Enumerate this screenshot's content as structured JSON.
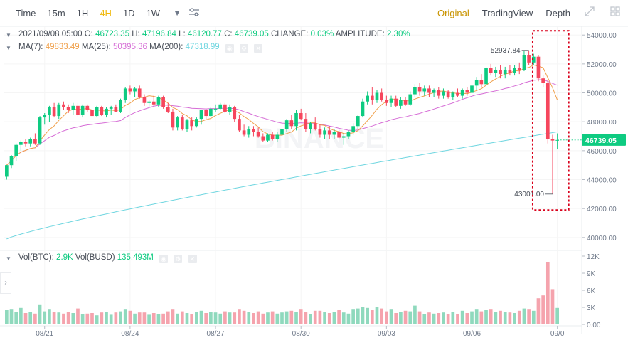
{
  "toolbar": {
    "timeframes": [
      {
        "label": "Time",
        "active": false
      },
      {
        "label": "15m",
        "active": false
      },
      {
        "label": "1H",
        "active": false
      },
      {
        "label": "4H",
        "active": true
      },
      {
        "label": "1D",
        "active": false
      },
      {
        "label": "1W",
        "active": false
      }
    ],
    "dropdown_icon": "caret-down-icon",
    "settings_icon": "sliders-icon",
    "views": [
      {
        "label": "Original",
        "active": true
      },
      {
        "label": "TradingView",
        "active": false
      },
      {
        "label": "Depth",
        "active": false
      }
    ],
    "expand_icon": "expand-icon",
    "grid_icon": "grid-icon"
  },
  "ohlc_legend": {
    "date": "2021/09/08 05:00",
    "open_label": "O:",
    "open": "46723.35",
    "high_label": "H:",
    "high": "47196.84",
    "low_label": "L:",
    "low": "46120.77",
    "close_label": "C:",
    "close": "46739.05",
    "change_label": "CHANGE:",
    "change": "0.03%",
    "amplitude_label": "AMPLITUDE:",
    "amplitude": "2.30%"
  },
  "ma_legend": {
    "ma7_label": "MA(7):",
    "ma7": "49833.49",
    "ma25_label": "MA(25):",
    "ma25": "50395.36",
    "ma200_label": "MA(200):",
    "ma200": "47318.99"
  },
  "volume_legend": {
    "btc_label": "Vol(BTC):",
    "btc": "2.9K",
    "busd_label": "Vol(BUSD)",
    "busd": "135.493M"
  },
  "watermark": "BINANCE",
  "annotations": {
    "high_marker": "52937.84",
    "low_marker": "43001.00",
    "current_price": "46739.05"
  },
  "colors": {
    "up": "#0ecb81",
    "down": "#f6465d",
    "up_volume": "#8fd9bd",
    "down_volume": "#f5a3ad",
    "ma7": "#f0a04b",
    "ma25": "#d66dd6",
    "ma200": "#6fd6e0",
    "highlight_box": "#d9001b",
    "accent": "#f0b90b"
  },
  "chart_data": {
    "type": "candlestick",
    "price_axis": {
      "ticks": [
        "54000.00",
        "52000.00",
        "50000.00",
        "48000.00",
        "46000.00",
        "44000.00",
        "42000.00",
        "40000.00"
      ],
      "range": [
        39500,
        54600
      ]
    },
    "volume_axis": {
      "ticks": [
        "12K",
        "9K",
        "6K",
        "3K",
        "0.00"
      ],
      "range": [
        0,
        12000
      ]
    },
    "x_ticks": [
      "08/21",
      "08/24",
      "08/27",
      "08/30",
      "09/03",
      "09/06",
      "09/0"
    ],
    "candles": [
      [
        44200,
        45000,
        44000,
        45000,
        2500
      ],
      [
        45000,
        45700,
        44800,
        45600,
        2600
      ],
      [
        45600,
        46500,
        45300,
        46400,
        2200
      ],
      [
        46400,
        46700,
        46000,
        46600,
        2900
      ],
      [
        46600,
        46800,
        46300,
        46500,
        2000
      ],
      [
        46500,
        46900,
        46300,
        46800,
        2200
      ],
      [
        46800,
        47200,
        46400,
        46500,
        1900
      ],
      [
        46500,
        48400,
        46400,
        48300,
        3400
      ],
      [
        48300,
        48600,
        47800,
        48500,
        2300
      ],
      [
        48500,
        49100,
        48000,
        49000,
        2600
      ],
      [
        49000,
        49300,
        48300,
        48400,
        2200
      ],
      [
        48400,
        49300,
        48200,
        49200,
        2100
      ],
      [
        49200,
        49400,
        48800,
        49000,
        1900
      ],
      [
        49000,
        49200,
        48600,
        48800,
        2200
      ],
      [
        48800,
        49300,
        48500,
        49100,
        2000
      ],
      [
        49100,
        49300,
        48300,
        48500,
        2800
      ],
      [
        48500,
        49200,
        48300,
        49100,
        1800
      ],
      [
        49100,
        49200,
        48700,
        48800,
        1900
      ],
      [
        48800,
        49100,
        48300,
        48400,
        2000
      ],
      [
        48400,
        49100,
        48300,
        49000,
        1600
      ],
      [
        49000,
        49100,
        48400,
        48500,
        2100
      ],
      [
        48500,
        49000,
        48300,
        48900,
        2200
      ],
      [
        48900,
        49100,
        48500,
        49000,
        1700
      ],
      [
        49000,
        49200,
        48700,
        48700,
        2100
      ],
      [
        48700,
        49600,
        48600,
        49500,
        2300
      ],
      [
        49500,
        50400,
        49300,
        50300,
        2600
      ],
      [
        50300,
        50500,
        49900,
        50100,
        2400
      ],
      [
        50100,
        50400,
        49700,
        50300,
        1900
      ],
      [
        50300,
        50500,
        49600,
        49700,
        2100
      ],
      [
        49700,
        49900,
        49100,
        49300,
        2100
      ],
      [
        49300,
        49500,
        49000,
        49400,
        1700
      ],
      [
        49400,
        49800,
        49100,
        49200,
        2000
      ],
      [
        49200,
        49800,
        49000,
        49700,
        1800
      ],
      [
        49700,
        49800,
        48900,
        49000,
        1900
      ],
      [
        49000,
        49300,
        48600,
        48700,
        2300
      ],
      [
        48700,
        48900,
        47400,
        47600,
        2600
      ],
      [
        47600,
        48400,
        47400,
        48300,
        1900
      ],
      [
        48300,
        48500,
        47400,
        47500,
        2300
      ],
      [
        47500,
        48200,
        47300,
        48100,
        2000
      ],
      [
        48100,
        48300,
        47400,
        47700,
        1800
      ],
      [
        47700,
        48300,
        47600,
        48200,
        2200
      ],
      [
        48200,
        48800,
        47800,
        48800,
        2400
      ],
      [
        48800,
        48900,
        48200,
        48400,
        2000
      ],
      [
        48400,
        49000,
        48300,
        48900,
        2200
      ],
      [
        48900,
        49200,
        48700,
        48900,
        2100
      ],
      [
        48900,
        49300,
        48800,
        49200,
        1900
      ],
      [
        49200,
        49300,
        48600,
        48700,
        2300
      ],
      [
        48700,
        49200,
        48500,
        49000,
        2100
      ],
      [
        49000,
        49100,
        48000,
        48200,
        2100
      ],
      [
        48200,
        48500,
        47300,
        47400,
        2600
      ],
      [
        47400,
        47800,
        47000,
        47100,
        2400
      ],
      [
        47100,
        47700,
        46900,
        47500,
        2200
      ],
      [
        47500,
        47700,
        47000,
        47300,
        2000
      ],
      [
        47300,
        47600,
        46900,
        47000,
        2300
      ],
      [
        47000,
        47200,
        46600,
        46700,
        1900
      ],
      [
        46700,
        47200,
        46600,
        47100,
        2100
      ],
      [
        47100,
        47300,
        46700,
        46800,
        2300
      ],
      [
        46800,
        47300,
        46600,
        47100,
        1900
      ],
      [
        47100,
        47700,
        46900,
        47500,
        2100
      ],
      [
        47500,
        48200,
        47300,
        48100,
        2300
      ],
      [
        48100,
        48500,
        47500,
        47700,
        2400
      ],
      [
        47700,
        48800,
        47400,
        48600,
        2200
      ],
      [
        48600,
        48900,
        48100,
        48200,
        2600
      ],
      [
        48200,
        48600,
        47300,
        47500,
        2200
      ],
      [
        47500,
        48000,
        47200,
        47900,
        1800
      ],
      [
        47900,
        48300,
        47400,
        47500,
        2400
      ],
      [
        47500,
        47800,
        46900,
        47100,
        2400
      ],
      [
        47100,
        47600,
        46800,
        47400,
        2200
      ],
      [
        47400,
        47700,
        46800,
        47100,
        2000
      ],
      [
        47100,
        47500,
        46800,
        47300,
        2200
      ],
      [
        47300,
        47400,
        46800,
        46900,
        2500
      ],
      [
        46900,
        47200,
        46400,
        47000,
        2100
      ],
      [
        47000,
        47400,
        46800,
        47300,
        1900
      ],
      [
        47300,
        47900,
        47100,
        47700,
        2600
      ],
      [
        47700,
        48500,
        47500,
        48400,
        2800
      ],
      [
        48400,
        49600,
        48300,
        49400,
        3000
      ],
      [
        49400,
        50100,
        49200,
        49800,
        2900
      ],
      [
        49800,
        50400,
        49200,
        49500,
        2500
      ],
      [
        49500,
        50200,
        49300,
        50000,
        3000
      ],
      [
        50000,
        50300,
        49400,
        49500,
        2800
      ],
      [
        49500,
        49800,
        49100,
        49300,
        2300
      ],
      [
        49300,
        49800,
        49000,
        49600,
        2600
      ],
      [
        49600,
        49800,
        49000,
        49100,
        2000
      ],
      [
        49100,
        49700,
        48900,
        49500,
        2200
      ],
      [
        49500,
        49700,
        49100,
        49200,
        2400
      ],
      [
        49200,
        50100,
        49100,
        49900,
        2300
      ],
      [
        49900,
        50600,
        49700,
        50400,
        3300
      ],
      [
        50400,
        50700,
        49800,
        50100,
        2300
      ],
      [
        50100,
        50500,
        49800,
        50300,
        1800
      ],
      [
        50300,
        50500,
        49700,
        50000,
        2100
      ],
      [
        50000,
        50300,
        49700,
        50200,
        1900
      ],
      [
        50200,
        50400,
        49600,
        49800,
        2000
      ],
      [
        49800,
        50300,
        49600,
        50100,
        2100
      ],
      [
        50100,
        50200,
        49600,
        49700,
        1800
      ],
      [
        49700,
        50100,
        49500,
        50000,
        2200
      ],
      [
        50000,
        50300,
        49700,
        49800,
        1800
      ],
      [
        49800,
        50300,
        49600,
        50200,
        2400
      ],
      [
        50200,
        50400,
        49800,
        50000,
        2000
      ],
      [
        50000,
        50600,
        49900,
        50500,
        2300
      ],
      [
        50500,
        51100,
        50200,
        50900,
        2600
      ],
      [
        50900,
        51300,
        50400,
        50600,
        2300
      ],
      [
        50600,
        51800,
        50500,
        51700,
        2500
      ],
      [
        51700,
        52000,
        51200,
        51400,
        2600
      ],
      [
        51400,
        51800,
        51100,
        51600,
        2200
      ],
      [
        51600,
        51900,
        51000,
        51300,
        2400
      ],
      [
        51300,
        51800,
        51000,
        51600,
        2200
      ],
      [
        51600,
        51900,
        51200,
        51400,
        2100
      ],
      [
        51400,
        51900,
        51200,
        51700,
        2000
      ],
      [
        51700,
        52100,
        51300,
        51600,
        2400
      ],
      [
        51600,
        52900,
        51500,
        52600,
        2800
      ],
      [
        52600,
        52937.84,
        51900,
        52100,
        2600
      ],
      [
        52100,
        52700,
        51900,
        52500,
        2400
      ],
      [
        52500,
        52600,
        50800,
        51000,
        4600
      ],
      [
        51000,
        51200,
        50400,
        50700,
        5100
      ],
      [
        50700,
        50900,
        46500,
        46800,
        11000
      ],
      [
        46800,
        47100,
        43001.0,
        46700,
        6200
      ],
      [
        46723.35,
        47196.84,
        46120.77,
        46739.05,
        2900
      ]
    ]
  }
}
